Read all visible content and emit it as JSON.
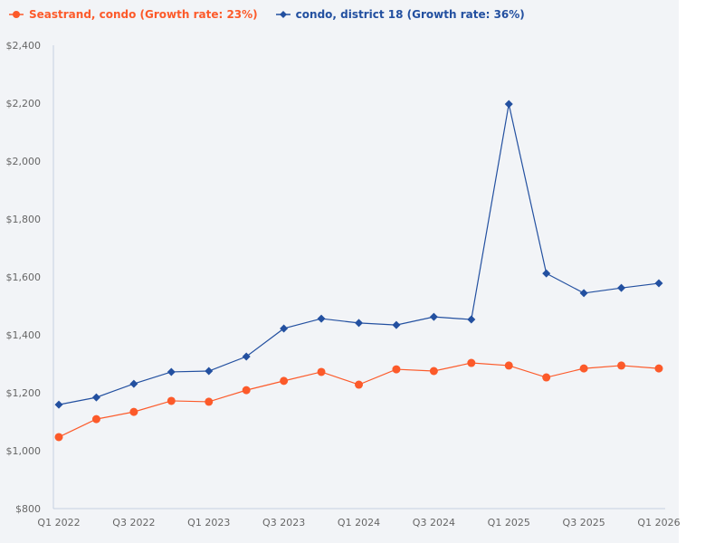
{
  "chart_data": {
    "type": "line",
    "x": [
      "Q1 2022",
      "Q2 2022",
      "Q3 2022",
      "Q4 2022",
      "Q1 2023",
      "Q2 2023",
      "Q3 2023",
      "Q4 2023",
      "Q1 2024",
      "Q2 2024",
      "Q3 2024",
      "Q4 2024",
      "Q1 2025",
      "Q2 2025",
      "Q3 2025",
      "Q4 2025",
      "Q1 2026"
    ],
    "xticks": [
      "Q1 2022",
      "Q3 2022",
      "Q1 2023",
      "Q3 2023",
      "Q1 2024",
      "Q3 2024",
      "Q1 2025",
      "Q3 2025",
      "Q1 2026"
    ],
    "yticks": [
      "$800",
      "$1,000",
      "$1,200",
      "$1,400",
      "$1,600",
      "$1,800",
      "$2,000",
      "$2,200",
      "$2,400"
    ],
    "ylim": [
      800,
      2400
    ],
    "grid": false,
    "legend_position": "top-left",
    "series": [
      {
        "name": "Seastrand, condo (Growth rate: 23%)",
        "color": "#fc5a2a",
        "marker": "circle",
        "values": [
          1047,
          1109,
          1134,
          1172,
          1169,
          1209,
          1241,
          1272,
          1228,
          1281,
          1275,
          1303,
          1294,
          1253,
          1284,
          1294,
          1284
        ]
      },
      {
        "name": "condo, district 18 (Growth rate: 36%)",
        "color": "#2350a0",
        "marker": "diamond",
        "values": [
          1159,
          1184,
          1231,
          1272,
          1275,
          1325,
          1422,
          1456,
          1441,
          1434,
          1462,
          1453,
          2197,
          1612,
          1544,
          1562,
          1578
        ]
      }
    ]
  }
}
